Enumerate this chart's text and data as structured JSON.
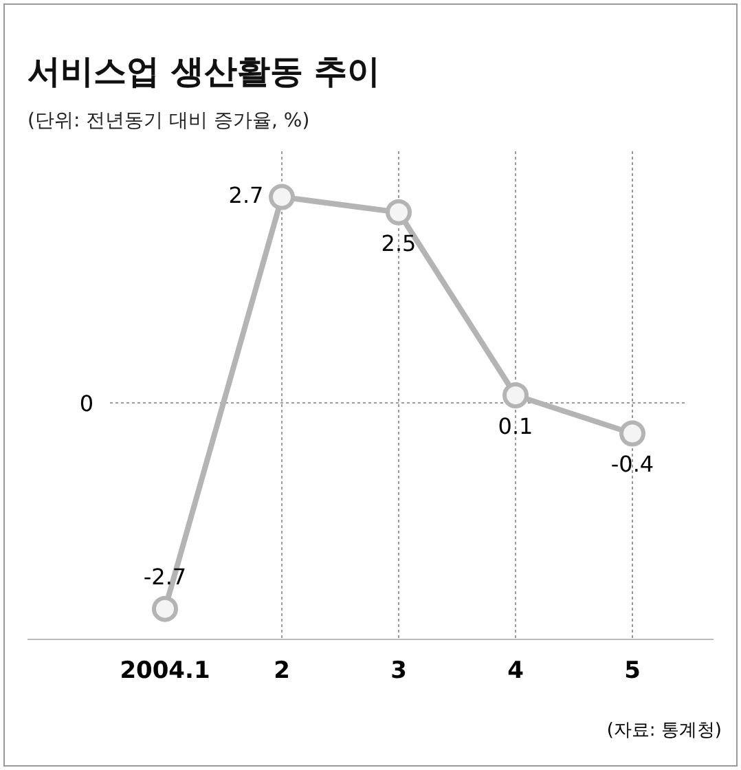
{
  "chart_data": {
    "type": "line",
    "title": "서비스업 생산활동 추이",
    "subtitle": "(단위: 전년동기 대비 증가율, %)",
    "categories": [
      "2004.1",
      "2",
      "3",
      "4",
      "5"
    ],
    "series": [
      {
        "color": "#b4b4b4",
        "values": [
          -2.7,
          2.7,
          2.5,
          0.1,
          -0.4
        ]
      }
    ],
    "ylim": [
      -3.1,
      3.3
    ],
    "ref_lines": [
      {
        "axis": "y",
        "value": 0,
        "label": "0",
        "line_style": "dotted",
        "color": "#999999"
      }
    ],
    "grid": "x",
    "marker": "circle",
    "line_style": "solid",
    "data_labels": true,
    "annotations": [
      "(자료: 통계청)"
    ]
  }
}
